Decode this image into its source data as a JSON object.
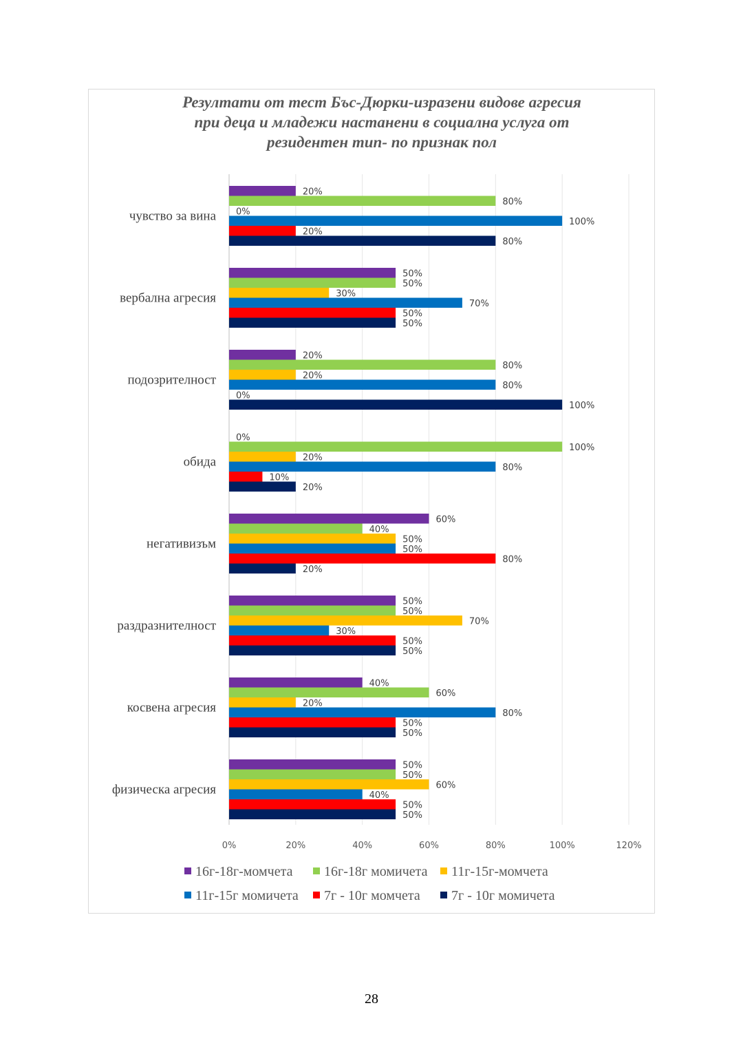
{
  "page_number": "28",
  "chart_data": {
    "type": "bar",
    "orientation": "horizontal",
    "title": [
      "Резултати от тест Бъс-Дюрки-изразени видове агресия",
      "при деца и младежи настанени в социална услуга от",
      "резидентен тип- по признак пол"
    ],
    "categories": [
      "чувство за вина",
      "вербална агресия",
      "подозрителност",
      "обида",
      "негативизъм",
      "раздразнителност",
      "косвена агресия",
      "физическа агресия"
    ],
    "series": [
      {
        "name": "16г-18г-момчета",
        "color": "#7030A0",
        "values": [
          20,
          50,
          20,
          0,
          60,
          50,
          40,
          50
        ]
      },
      {
        "name": "16г-18г момичета",
        "color": "#92D050",
        "values": [
          80,
          50,
          80,
          100,
          40,
          50,
          60,
          50
        ]
      },
      {
        "name": "11г-15г-момчета",
        "color": "#FFC000",
        "values": [
          0,
          30,
          20,
          20,
          50,
          70,
          20,
          60
        ]
      },
      {
        "name": "11г-15г момичета",
        "color": "#0070C0",
        "values": [
          100,
          70,
          80,
          80,
          50,
          30,
          80,
          40
        ]
      },
      {
        "name": "7г - 10г момчета",
        "color": "#FF0000",
        "values": [
          20,
          50,
          0,
          10,
          80,
          50,
          50,
          50
        ]
      },
      {
        "name": "7г - 10г момичета",
        "color": "#002060",
        "values": [
          80,
          50,
          100,
          20,
          20,
          50,
          50,
          50
        ]
      }
    ],
    "xlim": [
      0,
      120
    ],
    "xticks": [
      "0%",
      "20%",
      "40%",
      "60%",
      "80%",
      "100%",
      "120%"
    ],
    "unit": "%",
    "grid": true,
    "legend_position": "bottom"
  }
}
